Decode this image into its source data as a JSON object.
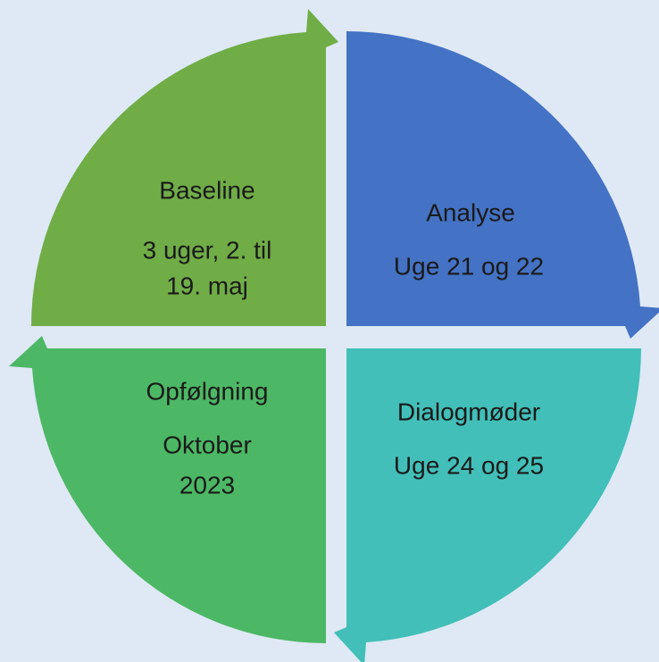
{
  "nodes": [
    {
      "lines": [
        "Baseline",
        "3 uger, 2. til",
        "19. maj"
      ]
    },
    {
      "lines": [
        "Analyse",
        "Uge 21 og 22"
      ]
    },
    {
      "lines": [
        "Dialogmøder",
        "Uge 24 og 25"
      ]
    },
    {
      "lines": [
        "Opfølgning",
        "Oktober",
        "2023"
      ]
    }
  ]
}
